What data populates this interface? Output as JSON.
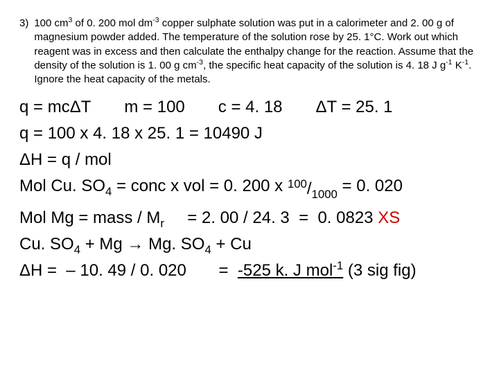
{
  "question": {
    "number": "3)",
    "text_parts": {
      "p1": "100 cm",
      "sup1": "3",
      "p2": " of 0. 200 mol dm",
      "sup2": "-3",
      "p3": " copper sulphate solution was put in a calorimeter and 2. 00 g of magnesium powder added.  The temperature of the solution rose by 25. 1°C.  Work out which reagent was in excess and then calculate the enthalpy change for the reaction.  Assume that the density of the solution is 1. 00 g cm",
      "sup3": "-3",
      "p4": ", the specific heat capacity of the solution is 4. 18 J g",
      "sup4": "-1",
      "p5": " K",
      "sup5": "-1",
      "p6": ".  Ignore the heat capacity of the metals."
    }
  },
  "row1": {
    "a": "q = mcΔT",
    "b": "m = 100",
    "c": "c = 4. 18",
    "d": "ΔT = 25. 1"
  },
  "line2": "q = 100  x  4. 18  x  25. 1  =  10490 J",
  "line3": "ΔH = q / mol",
  "line4": {
    "pre": "Mol Cu. SO",
    "sub1": "4",
    "mid": " = conc x vol  = 0. 200 x ",
    "frac_num": "100",
    "frac_den": "1000",
    "post": "  =  0. 020"
  },
  "line5": {
    "pre": "Mol Mg = mass / M",
    "sub1": "r",
    "mid": "     = 2. 00 / 24. 3  =  0. 0823 ",
    "xs": "XS"
  },
  "line6": {
    "pre": "Cu. SO",
    "s1": "4",
    "mid1": " + Mg → Mg. SO",
    "s2": "4",
    "post": " + Cu"
  },
  "line7": {
    "pre": "ΔH =  – 10. 49 / 0. 020       =  ",
    "ans_pre": "-525 k. J mol",
    "ans_sup": "-1",
    "post": " (3 sig fig)"
  },
  "colors": {
    "text": "#000000",
    "bg": "#ffffff",
    "xs": "#cc0000"
  },
  "fontsize_body": 15,
  "fontsize_eq": 24
}
